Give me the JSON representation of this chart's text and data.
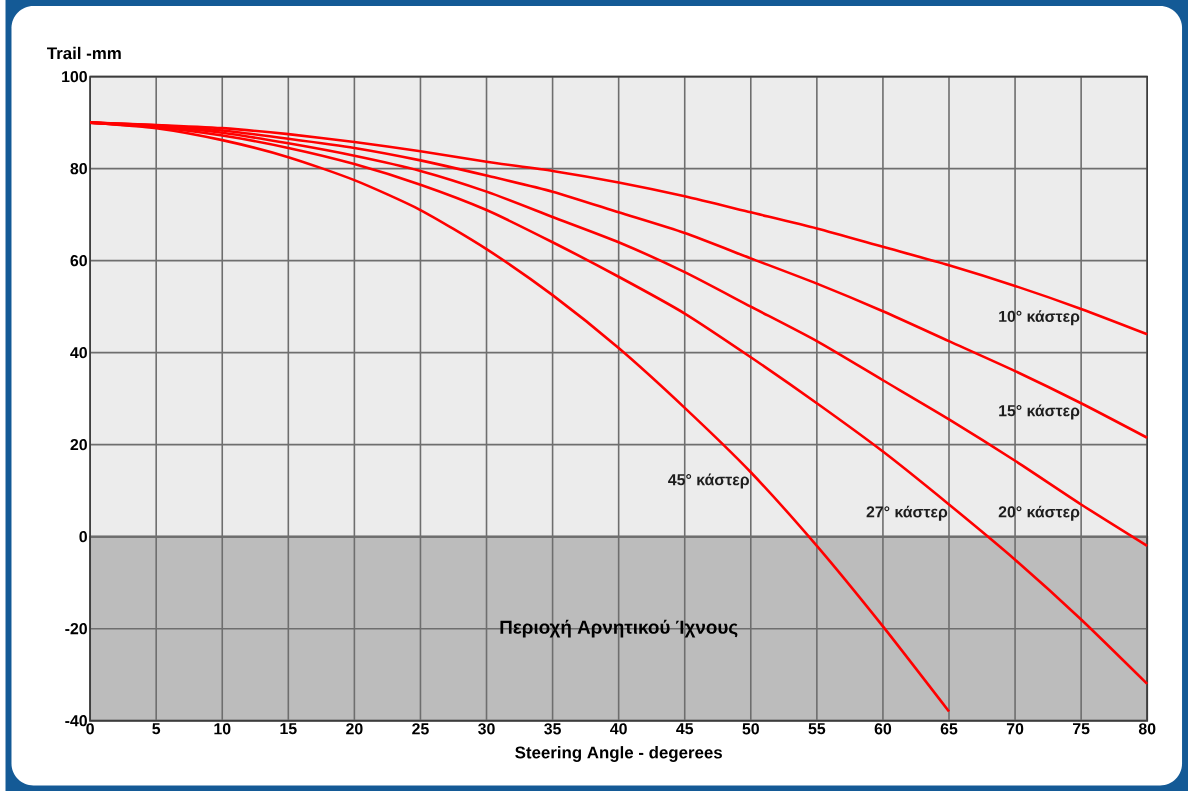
{
  "chart_data": {
    "type": "line",
    "xlabel": "Steering Angle - degerees",
    "ylabel": "Trail -mm",
    "x": [
      0,
      5,
      10,
      15,
      20,
      25,
      30,
      35,
      40,
      45,
      50,
      55,
      60,
      65,
      70,
      75,
      80
    ],
    "series": [
      {
        "name": "10° κάστερ",
        "color": "#ff0000",
        "values": [
          90,
          89.5,
          88.8,
          87.5,
          85.8,
          83.8,
          81.5,
          79.5,
          77,
          74,
          70.5,
          67,
          63,
          59,
          54.5,
          49.5,
          44
        ]
      },
      {
        "name": "15° κάστερ",
        "color": "#ff0000",
        "values": [
          90,
          89.4,
          88.3,
          86.5,
          84.5,
          81.8,
          78.5,
          75,
          70.5,
          66,
          60.5,
          55,
          49,
          42.5,
          36,
          29,
          21.5
        ]
      },
      {
        "name": "20° κάστερ",
        "color": "#ff0000",
        "values": [
          90,
          89.2,
          87.8,
          85.5,
          82.8,
          79.5,
          75,
          69.5,
          64,
          57.5,
          50,
          42.5,
          34,
          25.5,
          16.5,
          7,
          -2
        ]
      },
      {
        "name": "27° κάστερ",
        "color": "#ff0000",
        "values": [
          90,
          89,
          87.2,
          84.5,
          81,
          76.5,
          71,
          64,
          56.5,
          48.5,
          39,
          29,
          18.5,
          7,
          -5,
          -18,
          -32
        ]
      },
      {
        "name": "45° κάστερ",
        "color": "#ff0000",
        "values": [
          90,
          88.8,
          86.2,
          82.5,
          77.5,
          71,
          62.5,
          52.5,
          41,
          28,
          14,
          -2,
          -19.5,
          -38,
          null,
          null,
          null
        ]
      }
    ],
    "bands": [
      {
        "axis": "y",
        "from": -40,
        "to": 0,
        "label": "Περιοχή Αρνητικού Ίχνους",
        "color": "#bcbcbc"
      }
    ],
    "xlim": [
      0,
      80
    ],
    "ylim": [
      -40,
      100
    ],
    "xticks": [
      0,
      5,
      10,
      15,
      20,
      25,
      30,
      35,
      40,
      45,
      50,
      55,
      60,
      65,
      70,
      75,
      80
    ],
    "yticks": [
      -40,
      -20,
      0,
      20,
      40,
      60,
      80,
      100
    ],
    "grid": true,
    "legend": false,
    "marker": "none",
    "line_style": "solid"
  }
}
